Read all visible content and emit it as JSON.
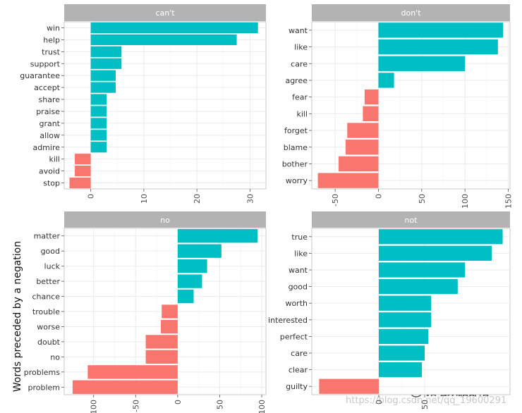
{
  "chart_data": {
    "type": "bar",
    "orientation": "horizontal",
    "ylabel": "Words preceded by a negation",
    "colors": {
      "positive": "#00bfc4",
      "negative": "#f8766d",
      "strip": "#b3b3b3",
      "grid": "#ebebeb"
    },
    "facets": [
      {
        "title": "can't",
        "categories": [
          "win",
          "help",
          "trust",
          "support",
          "guarantee",
          "accept",
          "share",
          "praise",
          "grant",
          "allow",
          "admire",
          "kill",
          "avoid",
          "stop"
        ],
        "values": [
          31.5,
          27.5,
          5.8,
          5.8,
          4.7,
          4.7,
          3.0,
          3.0,
          3.0,
          3.0,
          3.0,
          -3.0,
          -3.0,
          -4.0
        ],
        "xlim": [
          -5,
          33
        ],
        "xticks": [
          0,
          10,
          20,
          30
        ]
      },
      {
        "title": "don't",
        "categories": [
          "want",
          "like",
          "care",
          "agree",
          "fear",
          "kill",
          "forget",
          "blame",
          "bother",
          "worry"
        ],
        "values": [
          144,
          138,
          100,
          18,
          -16,
          -18,
          -36,
          -38,
          -46,
          -70
        ],
        "xlim": [
          -77,
          152
        ],
        "xticks": [
          -50,
          0,
          50,
          100,
          150
        ]
      },
      {
        "title": "no",
        "categories": [
          "matter",
          "good",
          "luck",
          "better",
          "chance",
          "trouble",
          "worse",
          "doubt",
          "no",
          "problems",
          "problem"
        ],
        "values": [
          95,
          52,
          35,
          29,
          19,
          -19,
          -20,
          -38,
          -38,
          -107,
          -125
        ],
        "xlim": [
          -135,
          105
        ],
        "xticks": [
          -100,
          -50,
          0,
          50,
          100
        ]
      },
      {
        "title": "not",
        "categories": [
          "true",
          "like",
          "want",
          "good",
          "worth",
          "interested",
          "perfect",
          "care",
          "clear",
          "guilty"
        ],
        "values": [
          135,
          123,
          94,
          86,
          57,
          57,
          54,
          50,
          47,
          -65
        ],
        "xlim": [
          -73,
          143
        ],
        "xticks": [
          0,
          50
        ]
      }
    ]
  },
  "watermark": {
    "url": "https://blog.csdn.net/qq_19600291",
    "brand": "拓端数据部落"
  }
}
